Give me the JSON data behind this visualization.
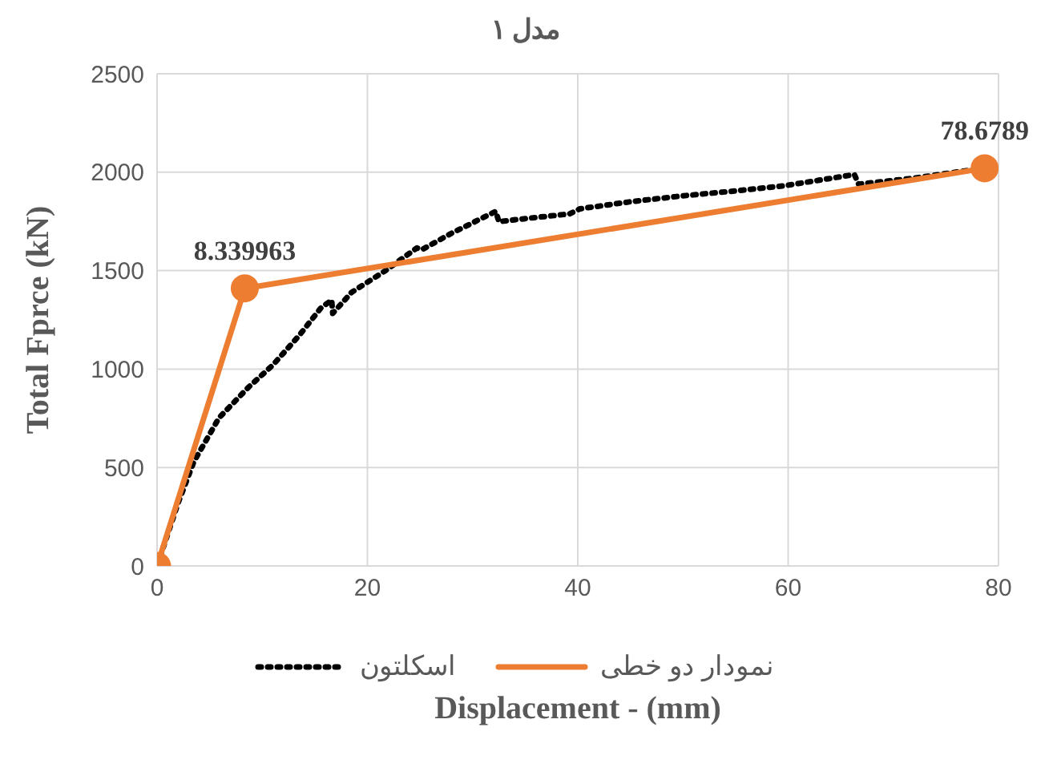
{
  "chart_data": {
    "type": "line",
    "title": "مدل ۱",
    "xlabel": "Displacement - (mm)",
    "ylabel": "Total Fprce (kN)",
    "xlim": [
      0,
      80
    ],
    "xticks": [
      0,
      20,
      40,
      60,
      80
    ],
    "ylim": [
      0,
      2500
    ],
    "yticks": [
      0,
      500,
      1000,
      1500,
      2000,
      2500
    ],
    "grid": true,
    "legend": "bottom",
    "series": [
      {
        "name": "اسکلتون",
        "color": "#000000",
        "line_style": "dotted",
        "marker": "none",
        "x": [
          0,
          2,
          3.5,
          5.9,
          8.7,
          11,
          13.5,
          15.6,
          16.6,
          16.7,
          18.5,
          21.6,
          24.7,
          25.2,
          28,
          32.2,
          32.5,
          36,
          39.2,
          40.2,
          45,
          50,
          55,
          59.5,
          66.3,
          66.7,
          72,
          77.1
        ],
        "values": [
          0,
          320,
          530,
          753,
          908,
          1020,
          1170,
          1312,
          1350,
          1283,
          1390,
          1496,
          1615,
          1607,
          1690,
          1801,
          1749,
          1770,
          1788,
          1814,
          1850,
          1880,
          1905,
          1930,
          1988,
          1939,
          1970,
          2009
        ]
      },
      {
        "name": "نمودار دو خطی",
        "color": "#ed7d31",
        "line_style": "solid",
        "marker": "circle",
        "x": [
          0,
          8.339963,
          78.6789
        ],
        "values": [
          0,
          1410,
          2020
        ]
      }
    ],
    "annotations": [
      {
        "text": "8.339963",
        "x": 8.339963,
        "y": 1410
      },
      {
        "text": "78.6789",
        "x": 78.6789,
        "y": 2020
      }
    ]
  }
}
